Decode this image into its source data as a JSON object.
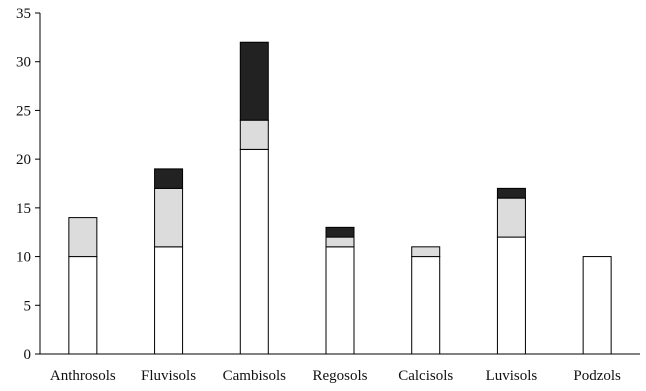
{
  "chart_data": {
    "type": "bar",
    "stacked": true,
    "categories": [
      "Anthrosols",
      "Fluvisols",
      "Cambisols",
      "Regosols",
      "Calcisols",
      "Luvisols",
      "Podzols"
    ],
    "series": [
      {
        "values": [
          10,
          11,
          21,
          11,
          10,
          12,
          10
        ],
        "color": "#ffffff"
      },
      {
        "values": [
          4,
          6,
          3,
          1,
          1,
          4,
          0
        ],
        "color": "#dcdcdc"
      },
      {
        "values": [
          0,
          2,
          8,
          1,
          0,
          1,
          0
        ],
        "color": "#222222"
      }
    ],
    "ylim": [
      0,
      35
    ],
    "yticks": [
      0,
      5,
      10,
      15,
      20,
      25,
      30,
      35
    ],
    "grid": false,
    "legend": "none"
  }
}
